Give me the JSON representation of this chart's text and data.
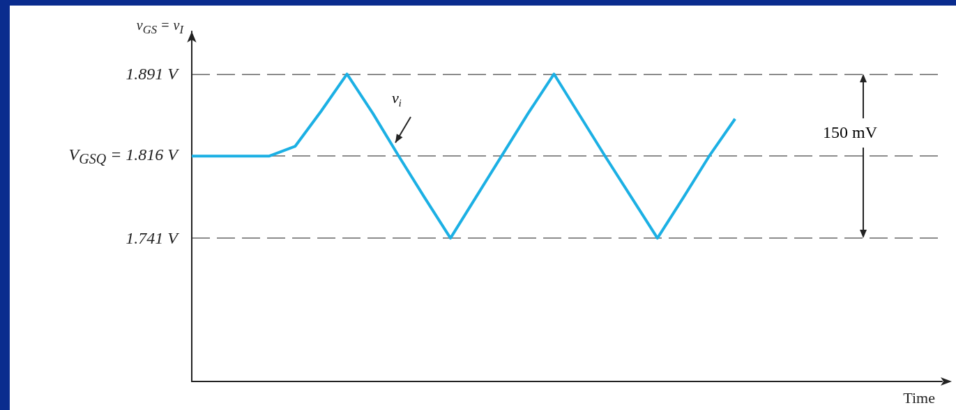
{
  "chart_data": {
    "type": "line",
    "xlabel": "Time",
    "ylabel": "v$_{GS}$ = v$_{I}$",
    "categories": [
      null,
      null,
      null,
      null,
      null,
      null,
      null,
      null,
      null,
      null,
      null,
      null,
      null,
      null,
      null,
      null,
      null,
      null,
      null,
      null,
      null,
      null,
      null,
      null,
      null,
      null,
      null,
      null,
      null,
      null
    ],
    "series": [
      {
        "color": "#1cb0e4",
        "values": [
          1.816,
          1.816,
          1.816,
          1.816,
          1.825,
          1.857,
          1.891,
          1.855,
          1.816,
          1.778,
          1.741,
          1.779,
          1.817,
          1.855,
          1.891,
          1.853,
          1.815,
          1.778,
          1.741,
          1.778,
          1.816,
          1.85,
          null,
          null,
          null,
          null,
          null,
          null,
          null,
          null
        ]
      }
    ],
    "ylim": [
      1.61,
      1.93
    ],
    "yticks": [
      {
        "value": 1.891,
        "label": "1.891 V"
      },
      {
        "value": 1.816,
        "label": "V$_{GSQ}$ = 1.816 V"
      },
      {
        "value": 1.741,
        "label": "1.741 V"
      }
    ],
    "tick_labels": "y",
    "grid": "y",
    "marker": "none",
    "line_style": "solid",
    "annotations": [
      "v$_{i}$",
      "150 mV"
    ]
  }
}
